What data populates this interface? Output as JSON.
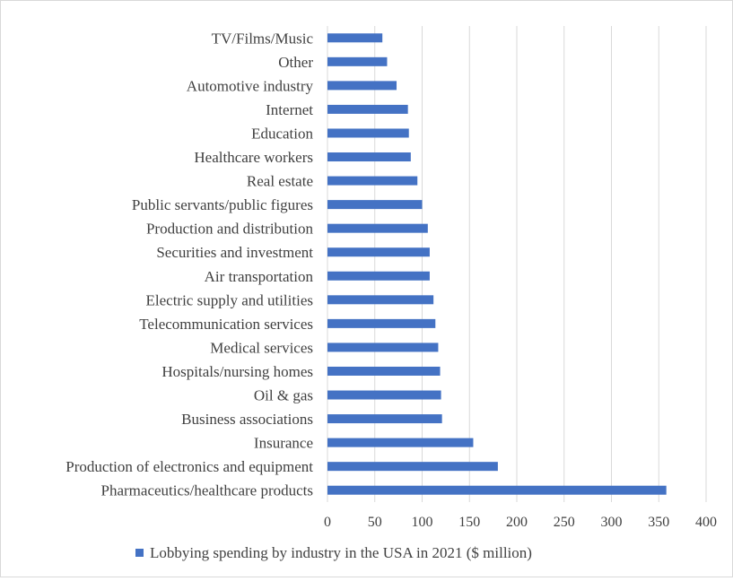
{
  "chart_data": {
    "type": "bar",
    "orientation": "horizontal",
    "categories": [
      "TV/Films/Music",
      "Other",
      "Automotive industry",
      "Internet",
      "Education",
      "Healthcare workers",
      "Real estate",
      "Public servants/public figures",
      "Production and distribution",
      "Securities and investment",
      "Air transportation",
      "Electric supply and utilities",
      "Telecommunication services",
      "Medical services",
      "Hospitals/nursing homes",
      "Oil & gas",
      "Business associations",
      "Insurance",
      "Production of electronics and equipment",
      "Pharmaceutics/healthcare products"
    ],
    "series": [
      {
        "name": "Lobbying spending by industry in the USA in 2021 ($ million)",
        "color": "#4472c4",
        "values": [
          58,
          63,
          73,
          85,
          86,
          88,
          95,
          100,
          106,
          108,
          108,
          112,
          114,
          117,
          119,
          120,
          121,
          154,
          180,
          358
        ]
      }
    ],
    "xticks": [
      "0",
      "50",
      "100",
      "150",
      "200",
      "250",
      "300",
      "350",
      "400"
    ],
    "xlim": [
      0,
      400
    ],
    "grid": "vertical",
    "legend_position": "bottom"
  }
}
